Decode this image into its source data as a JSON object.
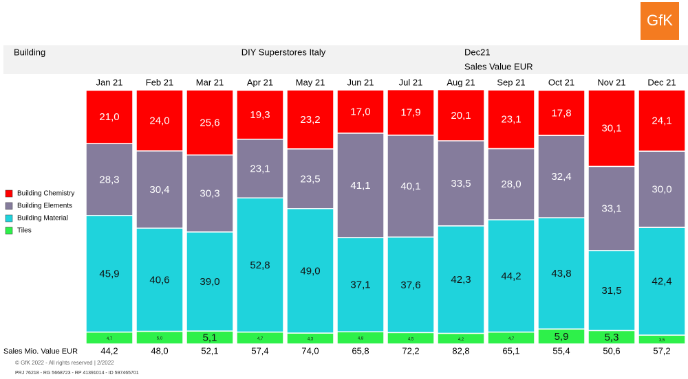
{
  "logo": "GfK",
  "header": {
    "left": "Building",
    "center": "DIY Superstores Italy",
    "right": "Dec21",
    "subtitle": "Sales Value EUR"
  },
  "chart_data": {
    "type": "stacked_bar",
    "categories": [
      "Jan 21",
      "Feb 21",
      "Mar 21",
      "Apr 21",
      "May 21",
      "Jun 21",
      "Jul 21",
      "Aug 21",
      "Sep 21",
      "Oct 21",
      "Nov 21",
      "Dec 21"
    ],
    "ylim": [
      0,
      100
    ],
    "series": [
      {
        "name": "Building Chemistry",
        "color": "#ff0000",
        "label_color": "#ffffff",
        "values": [
          21.0,
          24.0,
          25.6,
          19.3,
          23.2,
          17.0,
          17.9,
          20.1,
          23.1,
          17.8,
          30.1,
          24.1
        ],
        "value_labels": [
          "21,0",
          "24,0",
          "25,6",
          "19,3",
          "23,2",
          "17,0",
          "17,9",
          "20,1",
          "23,1",
          "17,8",
          "30,1",
          "24,1"
        ]
      },
      {
        "name": "Building Elements",
        "color": "#857c9c",
        "label_color": "#ffffff",
        "values": [
          28.3,
          30.4,
          30.3,
          23.1,
          23.5,
          41.1,
          40.1,
          33.5,
          28.0,
          32.4,
          33.1,
          30.0
        ],
        "value_labels": [
          "28,3",
          "30,4",
          "30,3",
          "23,1",
          "23,5",
          "41,1",
          "40,1",
          "33,5",
          "28,0",
          "32,4",
          "33,1",
          "30,0"
        ]
      },
      {
        "name": "Building Material",
        "color": "#1fd3dc",
        "label_color": "#111111",
        "values": [
          45.9,
          40.6,
          39.0,
          52.8,
          49.0,
          37.1,
          37.6,
          42.3,
          44.2,
          43.8,
          31.5,
          42.4
        ],
        "value_labels": [
          "45,9",
          "40,6",
          "39,0",
          "52,8",
          "49,0",
          "37,1",
          "37,6",
          "42,3",
          "44,2",
          "43,8",
          "31,5",
          "42,4"
        ]
      },
      {
        "name": "Tiles",
        "color": "#2ef04a",
        "label_color": "#111111",
        "values": [
          4.7,
          5.0,
          5.1,
          4.7,
          4.3,
          4.8,
          4.5,
          4.2,
          4.7,
          5.9,
          5.3,
          3.5
        ],
        "value_labels": [
          "4,7",
          "5,0",
          "5,1",
          "4,7",
          "4,3",
          "4,8",
          "4,5",
          "4,2",
          "4,7",
          "5,9",
          "5,3",
          "3,5"
        ]
      }
    ],
    "totals": {
      "label": "Sales Mio. Value EUR",
      "values": [
        44.2,
        48.0,
        52.1,
        57.4,
        74.0,
        65.8,
        72.2,
        82.8,
        65.1,
        55.4,
        50.6,
        57.2
      ],
      "value_labels": [
        "44,2",
        "48,0",
        "52,1",
        "57,4",
        "74,0",
        "65,8",
        "72,2",
        "82,8",
        "65,1",
        "55,4",
        "50,6",
        "57,2"
      ]
    }
  },
  "footer": {
    "copyright": "© GfK 2022 - All rights reserved | 2/2022",
    "ids": "PRJ 76218 - RG 5668723 - RP 41391014 - ID 597465701"
  }
}
